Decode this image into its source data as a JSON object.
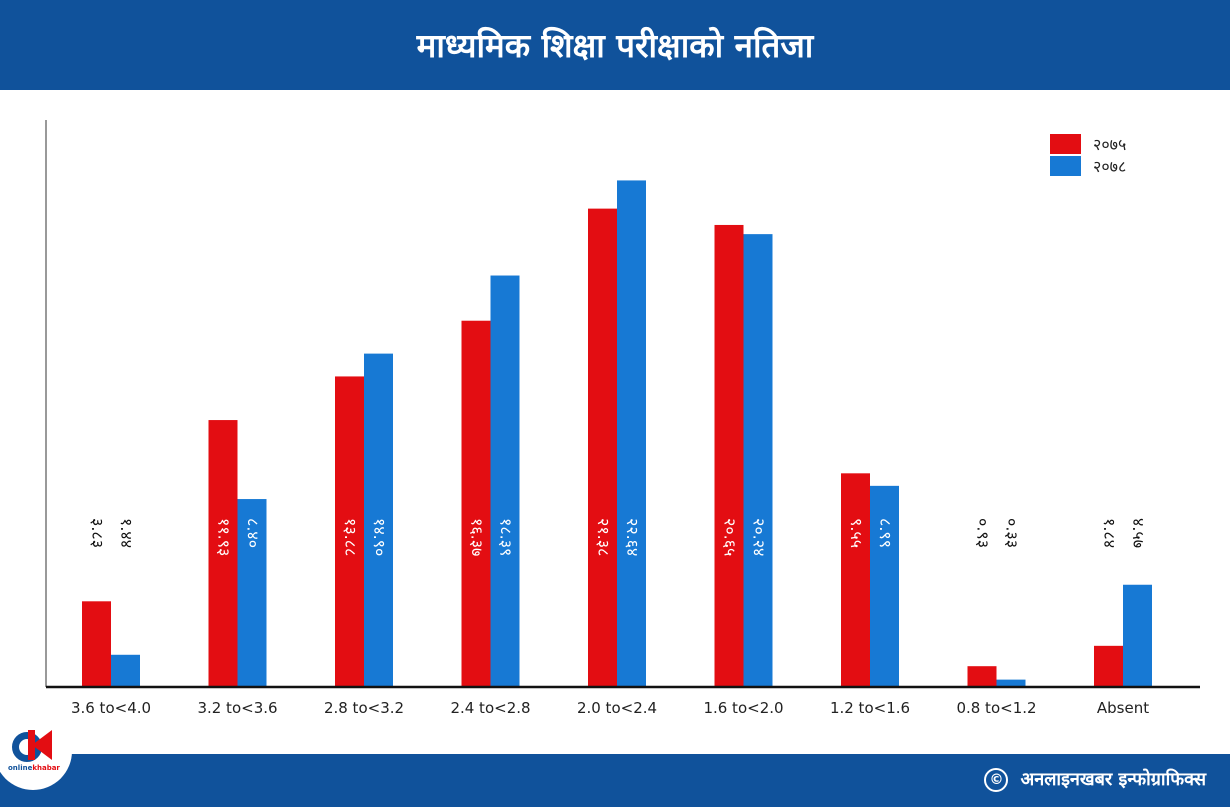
{
  "header": {
    "title": "माध्यमिक शिक्षा परीक्षाको नतिजा"
  },
  "footer": {
    "copyright_symbol": "©",
    "credit": "अनलाइनखबर इन्फोग्राफिक्स",
    "logo_text_a": "online",
    "logo_text_b": "khabar"
  },
  "colors": {
    "header": "#10529b",
    "series_2075": "#e30d12",
    "series_2078": "#1779d4"
  },
  "chart_data": {
    "type": "bar",
    "title": "माध्यमिक शिक्षा परीक्षाको नतिजा",
    "xlabel": "",
    "ylabel": "",
    "grid": false,
    "legend_position": "top-right",
    "ylim": [
      0,
      24
    ],
    "categories": [
      "3.6 to<4.0",
      "3.2 to<3.6",
      "2.8 to<3.2",
      "2.4 to<2.8",
      "2.0 to<2.4",
      "1.6 to<2.0",
      "1.2 to<1.6",
      "0.8 to<1.2",
      "Absent"
    ],
    "series": [
      {
        "name": "२०७५",
        "color": "#e30d12",
        "values": [
          3.83,
          11.93,
          13.88,
          16.37,
          21.38,
          20.65,
          9.55,
          0.93,
          1.84
        ],
        "labels": [
          "३.८३",
          "११.९३",
          "१३.८८",
          "१६.३७",
          "२१.३८",
          "२०.६५",
          "९.५५",
          "०.९३",
          "१.८४"
        ]
      },
      {
        "name": "२०७८",
        "color": "#1779d4",
        "values": [
          1.44,
          8.4,
          14.9,
          18.39,
          22.64,
          20.24,
          8.99,
          0.33,
          4.57
        ],
        "labels": [
          "१.४४",
          "८.४०",
          "१४.९०",
          "१८.३९",
          "२२.६४",
          "२०.२४",
          "८.९९",
          "०.३३",
          "४.५७"
        ]
      }
    ]
  }
}
